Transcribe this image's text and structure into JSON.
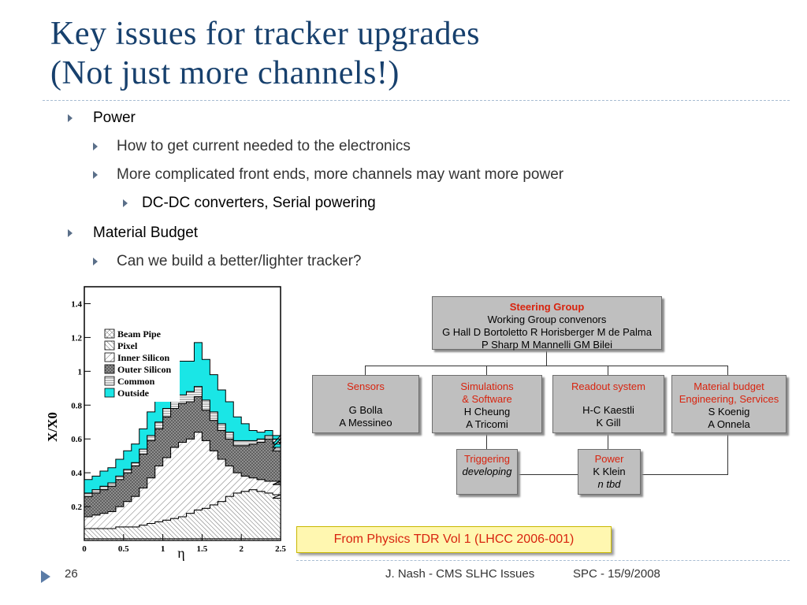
{
  "slide": {
    "title_line1": "Key issues for tracker upgrades",
    "title_line2": "(Not just more channels!)",
    "bullets": [
      {
        "level": 1,
        "text": "Power"
      },
      {
        "level": 2,
        "text": "How to get current needed to the electronics"
      },
      {
        "level": 2,
        "text": "More complicated front ends, more channels may want more power"
      },
      {
        "level": 3,
        "text": "DC-DC converters, Serial powering"
      },
      {
        "level": 1,
        "text": "Material Budget"
      },
      {
        "level": 2,
        "text": "Can we build a better/lighter tracker?"
      }
    ],
    "source_note": "From Physics TDR Vol 1 (LHCC 2006-001)",
    "footer": {
      "page_number": "26",
      "author": "J. Nash - CMS SLHC Issues",
      "event": "SPC - 15/9/2008"
    },
    "colors": {
      "title": "#17406d",
      "accent_red": "#d8240f",
      "outside_cyan": "#1ae6e6"
    }
  },
  "org_chart": {
    "steering": {
      "title": "Steering Group",
      "subtitle": "Working Group convenors",
      "members_line1": "G Hall D Bortoletto R Horisberger M de Palma",
      "members_line2": "P Sharp M Mannelli GM Bilei"
    },
    "sensors": {
      "title": "Sensors",
      "line1": "G Bolla",
      "line2": "A Messineo"
    },
    "simulations": {
      "title_line1": "Simulations",
      "title_line2": "& Software",
      "line1": "H Cheung",
      "line2": "A Tricomi"
    },
    "readout": {
      "title": "Readout system",
      "line1": "H-C Kaestli",
      "line2": "K Gill"
    },
    "material": {
      "title_line1": "Material budget",
      "title_line2": "Engineering, Services",
      "line1": "S Koenig",
      "line2": "A Onnela"
    },
    "triggering": {
      "title": "Triggering",
      "line1": "developing"
    },
    "power": {
      "title": "Power",
      "line1": "K Klein",
      "line2": "n tbd"
    }
  },
  "chart_data": {
    "type": "area",
    "stacked": true,
    "xlabel": "η",
    "ylabel": "X/X0",
    "xlim": [
      0,
      2.5
    ],
    "ylim": [
      0,
      1.5
    ],
    "xticks": [
      "0",
      "0.5",
      "1",
      "1.5",
      "2",
      "2.5"
    ],
    "yticks": [
      "0.2",
      "0.4",
      "0.6",
      "0.8",
      "1",
      "1.2",
      "1.4"
    ],
    "legend": [
      "Beam Pipe",
      "Pixel",
      "Inner Silicon",
      "Outer Silicon",
      "Common",
      "Outside"
    ],
    "legend_position": "top-left",
    "x": [
      0.0,
      0.1,
      0.2,
      0.3,
      0.4,
      0.5,
      0.6,
      0.7,
      0.8,
      0.9,
      1.0,
      1.1,
      1.2,
      1.3,
      1.4,
      1.5,
      1.6,
      1.7,
      1.8,
      1.9,
      2.0,
      2.1,
      2.2,
      2.3,
      2.4,
      2.5
    ],
    "series": [
      {
        "name": "Beam Pipe",
        "values": [
          0.01,
          0.01,
          0.01,
          0.01,
          0.01,
          0.01,
          0.01,
          0.01,
          0.01,
          0.01,
          0.01,
          0.01,
          0.01,
          0.01,
          0.01,
          0.01,
          0.01,
          0.01,
          0.01,
          0.01,
          0.01,
          0.01,
          0.01,
          0.01,
          0.01,
          0.01
        ]
      },
      {
        "name": "Pixel",
        "values": [
          0.06,
          0.06,
          0.06,
          0.06,
          0.07,
          0.07,
          0.07,
          0.08,
          0.09,
          0.1,
          0.11,
          0.12,
          0.13,
          0.15,
          0.17,
          0.18,
          0.2,
          0.22,
          0.25,
          0.27,
          0.28,
          0.29,
          0.28,
          0.27,
          0.26,
          0.24
        ]
      },
      {
        "name": "Inner Silicon",
        "values": [
          0.07,
          0.08,
          0.09,
          0.1,
          0.12,
          0.15,
          0.18,
          0.22,
          0.27,
          0.33,
          0.37,
          0.42,
          0.44,
          0.44,
          0.46,
          0.4,
          0.32,
          0.25,
          0.18,
          0.12,
          0.09,
          0.07,
          0.07,
          0.07,
          0.08,
          0.08
        ]
      },
      {
        "name": "Outer Silicon",
        "values": [
          0.12,
          0.13,
          0.14,
          0.15,
          0.16,
          0.17,
          0.18,
          0.2,
          0.22,
          0.22,
          0.24,
          0.23,
          0.23,
          0.22,
          0.21,
          0.18,
          0.18,
          0.17,
          0.16,
          0.16,
          0.18,
          0.2,
          0.22,
          0.25,
          0.23,
          0.2
        ]
      },
      {
        "name": "Common",
        "values": [
          0.02,
          0.02,
          0.02,
          0.02,
          0.02,
          0.02,
          0.02,
          0.03,
          0.03,
          0.04,
          0.05,
          0.05,
          0.05,
          0.06,
          0.06,
          0.06,
          0.05,
          0.04,
          0.04,
          0.03,
          0.03,
          0.02,
          0.02,
          0.02,
          0.02,
          0.02
        ]
      },
      {
        "name": "Outside",
        "values": [
          0.08,
          0.08,
          0.09,
          0.09,
          0.1,
          0.11,
          0.11,
          0.12,
          0.14,
          0.16,
          0.2,
          0.22,
          0.2,
          0.18,
          0.26,
          0.24,
          0.22,
          0.2,
          0.18,
          0.14,
          0.1,
          0.06,
          0.04,
          0.03,
          0.02,
          0.02
        ]
      }
    ]
  }
}
